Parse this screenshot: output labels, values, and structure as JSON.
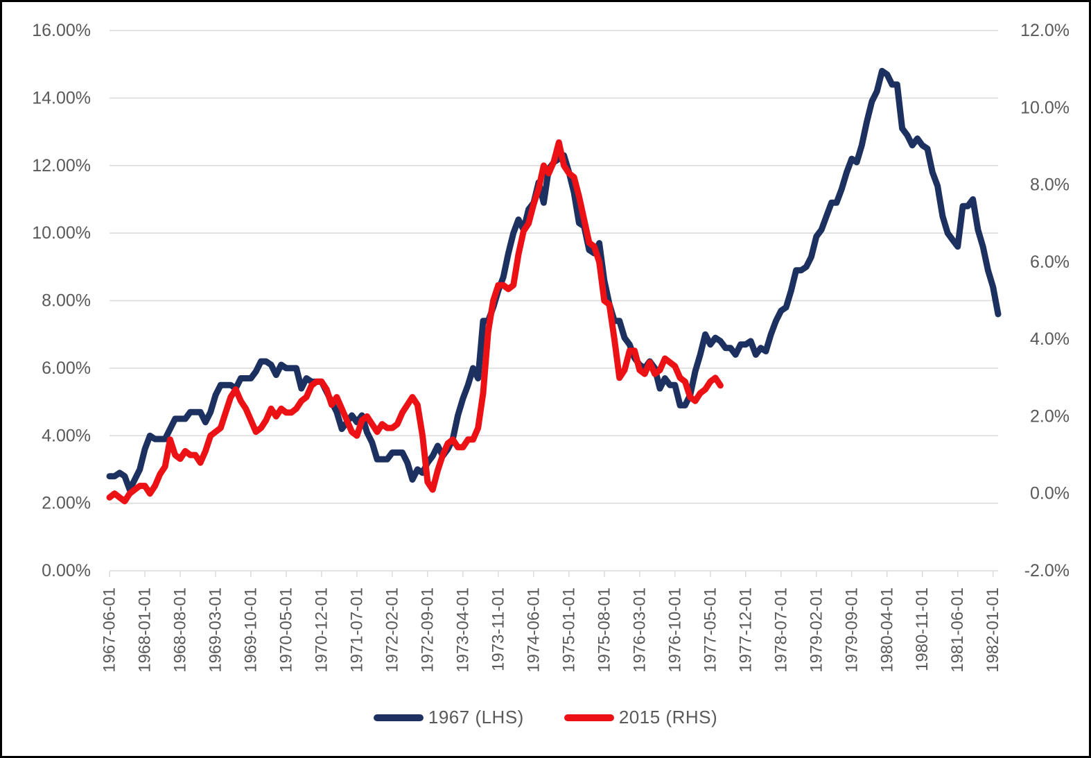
{
  "chart_data": {
    "type": "line",
    "title": "",
    "xlabel": "",
    "ylabel_left": "",
    "ylabel_right": "",
    "legend_position": "bottom",
    "grid": "horizontal",
    "x_tick_labels": [
      "1967-06-01",
      "1968-01-01",
      "1968-08-01",
      "1969-03-01",
      "1969-10-01",
      "1970-05-01",
      "1970-12-01",
      "1971-07-01",
      "1972-02-01",
      "1972-09-01",
      "1973-04-01",
      "1973-11-01",
      "1974-06-01",
      "1975-01-01",
      "1975-08-01",
      "1976-03-01",
      "1976-10-01",
      "1977-05-01",
      "1977-12-01",
      "1978-07-01",
      "1979-02-01",
      "1979-09-01",
      "1980-04-01",
      "1980-11-01",
      "1981-06-01",
      "1982-01-01"
    ],
    "x_tick_interval_points": 7,
    "left_axis": {
      "min": 0,
      "max": 16,
      "step": 2,
      "labels": [
        "16.00%",
        "14.00%",
        "12.00%",
        "10.00%",
        "8.00%",
        "6.00%",
        "4.00%",
        "2.00%",
        "0.00%"
      ]
    },
    "right_axis": {
      "min": -2,
      "max": 12,
      "step": 2,
      "labels": [
        "12.0%",
        "10.0%",
        "8.0%",
        "6.0%",
        "4.0%",
        "2.0%",
        "0.0%",
        "-2.0%"
      ]
    },
    "series": [
      {
        "name": "1967 (LHS)",
        "axis": "left",
        "color": "#1d3160",
        "values": [
          2.8,
          2.8,
          2.9,
          2.8,
          2.4,
          2.7,
          3.0,
          3.6,
          4.0,
          3.9,
          3.9,
          3.9,
          4.2,
          4.5,
          4.5,
          4.5,
          4.7,
          4.7,
          4.7,
          4.4,
          4.7,
          5.2,
          5.5,
          5.5,
          5.5,
          5.4,
          5.7,
          5.7,
          5.7,
          5.9,
          6.2,
          6.2,
          6.1,
          5.8,
          6.1,
          6.0,
          6.0,
          6.0,
          5.4,
          5.7,
          5.6,
          5.6,
          5.6,
          5.3,
          5.0,
          4.7,
          4.2,
          4.4,
          4.6,
          4.4,
          4.6,
          4.1,
          3.8,
          3.3,
          3.3,
          3.3,
          3.5,
          3.5,
          3.5,
          3.2,
          2.7,
          3.0,
          2.9,
          3.2,
          3.4,
          3.7,
          3.4,
          3.6,
          3.9,
          4.6,
          5.1,
          5.5,
          6.0,
          5.7,
          7.4,
          7.4,
          7.8,
          8.3,
          8.7,
          9.4,
          10.0,
          10.4,
          10.1,
          10.7,
          10.9,
          11.5,
          10.9,
          11.9,
          12.1,
          12.2,
          12.3,
          11.8,
          11.2,
          10.3,
          10.2,
          9.5,
          9.4,
          9.7,
          8.6,
          7.9,
          7.4,
          7.4,
          6.9,
          6.7,
          6.3,
          6.1,
          6.0,
          6.2,
          6.0,
          5.4,
          5.7,
          5.5,
          5.5,
          4.9,
          4.9,
          5.2,
          5.9,
          6.4,
          7.0,
          6.7,
          6.9,
          6.8,
          6.6,
          6.6,
          6.4,
          6.7,
          6.7,
          6.8,
          6.4,
          6.6,
          6.5,
          7.0,
          7.4,
          7.7,
          7.8,
          8.3,
          8.9,
          8.9,
          9.0,
          9.3,
          9.9,
          10.1,
          10.5,
          10.9,
          10.9,
          11.3,
          11.8,
          12.2,
          12.1,
          12.6,
          13.3,
          13.9,
          14.2,
          14.8,
          14.7,
          14.4,
          14.4,
          13.1,
          12.9,
          12.6,
          12.8,
          12.6,
          12.5,
          11.8,
          11.4,
          10.5,
          10.0,
          9.8,
          9.6,
          10.8,
          10.8,
          11.0,
          10.1,
          9.6,
          8.9,
          8.4,
          7.6
        ]
      },
      {
        "name": "2015 (RHS)",
        "axis": "right",
        "color": "#ec1115",
        "values": [
          -0.1,
          0.0,
          -0.1,
          -0.2,
          0.0,
          0.1,
          0.2,
          0.2,
          0.0,
          0.2,
          0.5,
          0.7,
          1.4,
          1.0,
          0.9,
          1.1,
          1.0,
          1.0,
          0.8,
          1.1,
          1.5,
          1.6,
          1.7,
          2.1,
          2.5,
          2.7,
          2.4,
          2.2,
          1.9,
          1.6,
          1.7,
          1.9,
          2.2,
          2.0,
          2.2,
          2.1,
          2.1,
          2.2,
          2.4,
          2.5,
          2.8,
          2.9,
          2.9,
          2.7,
          2.3,
          2.5,
          2.2,
          1.9,
          1.6,
          1.5,
          1.9,
          2.0,
          1.8,
          1.6,
          1.8,
          1.7,
          1.7,
          1.8,
          2.1,
          2.3,
          2.5,
          2.3,
          1.5,
          0.3,
          0.1,
          0.6,
          1.0,
          1.3,
          1.4,
          1.2,
          1.2,
          1.4,
          1.4,
          1.7,
          2.6,
          4.2,
          5.0,
          5.4,
          5.4,
          5.3,
          5.4,
          6.2,
          6.8,
          7.0,
          7.5,
          7.9,
          8.5,
          8.3,
          8.6,
          9.1,
          8.5,
          8.3,
          8.2,
          7.7,
          7.1,
          6.5,
          6.4,
          6.0,
          5.0,
          4.9,
          4.0,
          3.0,
          3.2,
          3.7,
          3.7,
          3.2,
          3.1,
          3.4,
          3.1,
          3.2,
          3.5,
          3.4,
          3.3,
          3.0,
          2.9,
          2.5,
          2.4,
          2.6,
          2.7,
          2.9,
          3.0,
          2.8
        ]
      }
    ],
    "colors": {
      "background": "#ffffff",
      "border": "#000000",
      "gridline": "#d9d9d9",
      "axis_text": "#595959"
    }
  }
}
